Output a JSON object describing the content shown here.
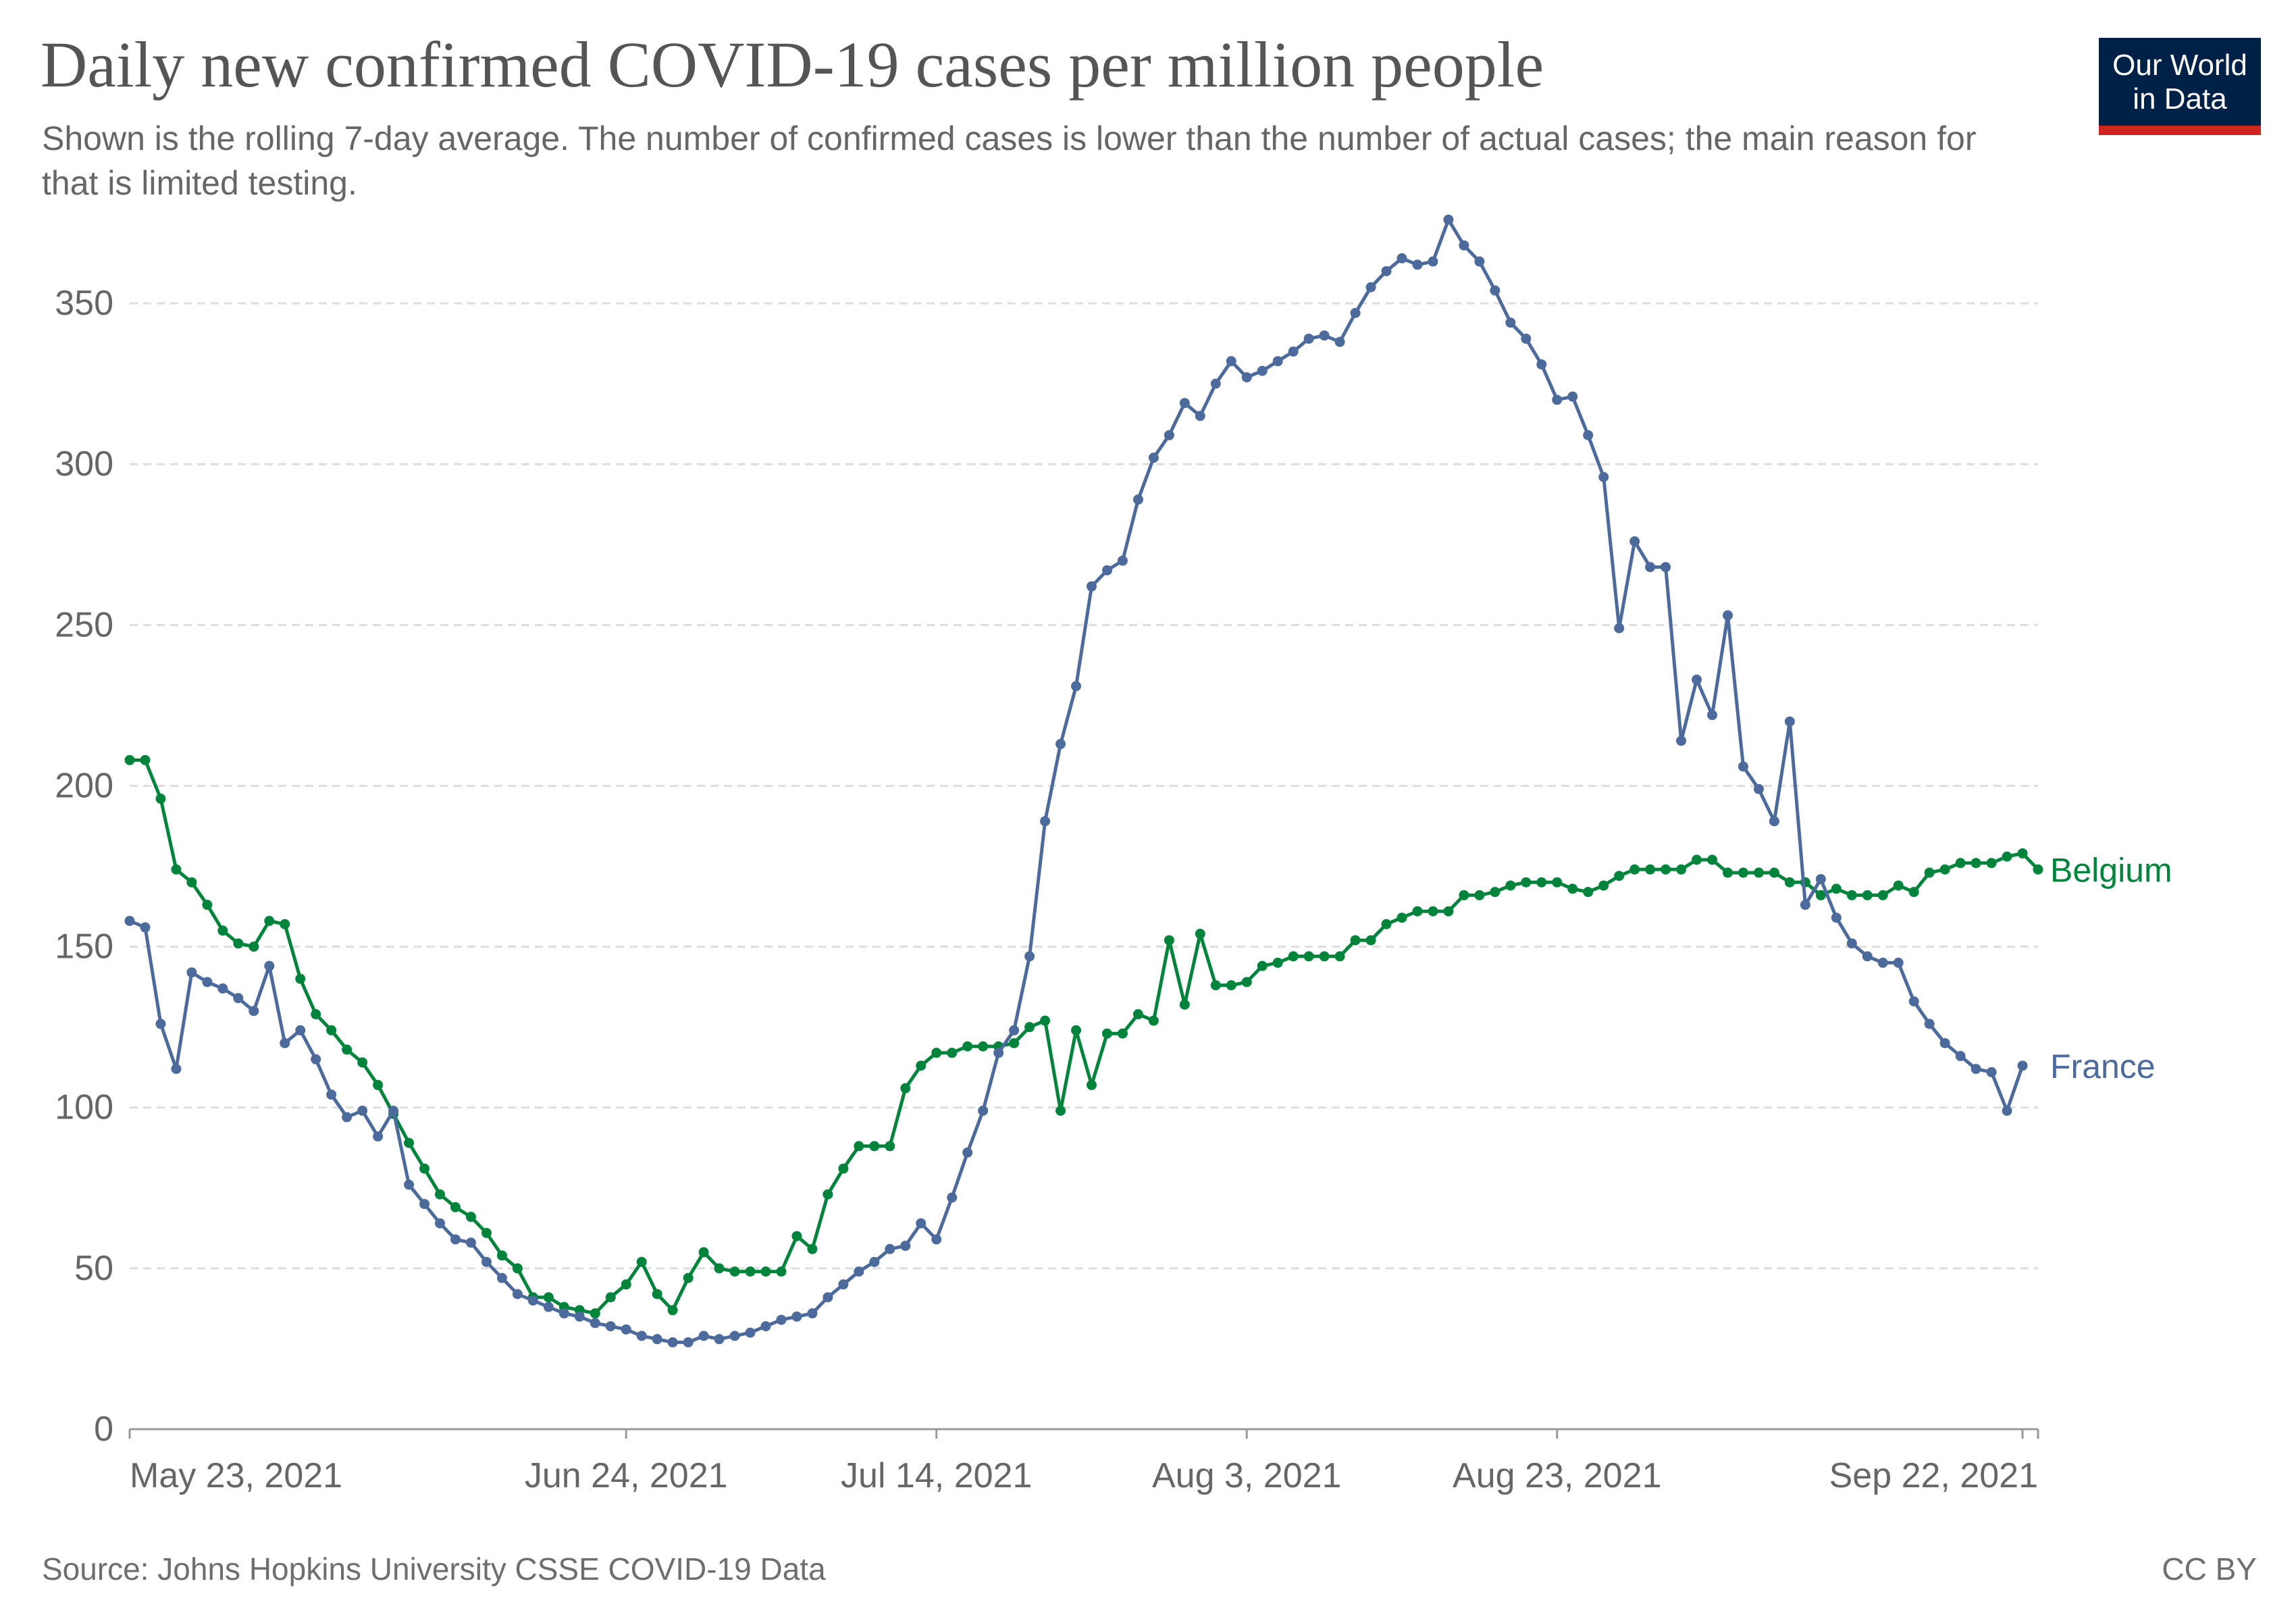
{
  "header": {
    "title": "Daily new confirmed COVID-19 cases per million people",
    "subtitle": "Shown is the rolling 7-day average. The number of confirmed cases is lower than the number of actual cases; the main reason for that is limited testing."
  },
  "logo": {
    "line1": "Our World",
    "line2": "in Data"
  },
  "footer": {
    "source": "Source: Johns Hopkins University CSSE COVID-19 Data",
    "license": "CC BY"
  },
  "chart_data": {
    "type": "line",
    "title": "Daily new confirmed COVID-19 cases per million people",
    "xlabel": "",
    "ylabel": "",
    "ylim": [
      0,
      375
    ],
    "yticks": [
      0,
      50,
      100,
      150,
      200,
      250,
      300,
      350
    ],
    "x_start": "May 23, 2021",
    "x_end": "Sep 24, 2021",
    "xticks": [
      {
        "label": "May 23, 2021",
        "day": 0
      },
      {
        "label": "Jun 24, 2021",
        "day": 32
      },
      {
        "label": "Jul 14, 2021",
        "day": 52
      },
      {
        "label": "Aug 3, 2021",
        "day": 72
      },
      {
        "label": "Aug 23, 2021",
        "day": 92
      },
      {
        "label": "Sep 22, 2021",
        "day": 122
      }
    ],
    "grid": "horizontal dashed",
    "legend": "inline labels at line ends",
    "series": [
      {
        "name": "Belgium",
        "color": "#00843b",
        "values": [
          208,
          208,
          196,
          174,
          170,
          163,
          155,
          151,
          150,
          158,
          157,
          140,
          129,
          124,
          118,
          114,
          107,
          98,
          89,
          81,
          73,
          69,
          66,
          61,
          54,
          50,
          41,
          41,
          38,
          37,
          36,
          41,
          45,
          52,
          42,
          37,
          47,
          55,
          50,
          49,
          49,
          49,
          49,
          60,
          56,
          73,
          81,
          88,
          88,
          88,
          106,
          113,
          117,
          117,
          119,
          119,
          119,
          120,
          125,
          127,
          99,
          124,
          107,
          123,
          123,
          129,
          127,
          152,
          132,
          154,
          138,
          138,
          139,
          144,
          145,
          147,
          147,
          147,
          147,
          152,
          152,
          157,
          159,
          161,
          161,
          161,
          166,
          166,
          167,
          169,
          170,
          170,
          170,
          168,
          167,
          169,
          172,
          174,
          174,
          174,
          174,
          177,
          177,
          173,
          173,
          173,
          173,
          170,
          170,
          166,
          168,
          166,
          166,
          166,
          169,
          167,
          173,
          174,
          176,
          176,
          176,
          178,
          179,
          174
        ]
      },
      {
        "name": "France",
        "color": "#4c6a9c",
        "values": [
          158,
          156,
          126,
          112,
          142,
          139,
          137,
          134,
          130,
          144,
          120,
          124,
          115,
          104,
          97,
          99,
          91,
          99,
          76,
          70,
          64,
          59,
          58,
          52,
          47,
          42,
          40,
          38,
          36,
          35,
          33,
          32,
          31,
          29,
          28,
          27,
          27,
          29,
          28,
          29,
          30,
          32,
          34,
          35,
          36,
          41,
          45,
          49,
          52,
          56,
          57,
          64,
          59,
          72,
          86,
          99,
          117,
          124,
          147,
          189,
          213,
          231,
          262,
          267,
          270,
          289,
          302,
          309,
          319,
          315,
          325,
          332,
          327,
          329,
          332,
          335,
          339,
          340,
          338,
          347,
          355,
          360,
          364,
          362,
          363,
          376,
          368,
          363,
          354,
          344,
          339,
          331,
          320,
          321,
          309,
          296,
          249,
          276,
          268,
          268,
          214,
          233,
          222,
          253,
          206,
          199,
          189,
          220,
          163,
          171,
          159,
          151,
          147,
          145,
          145,
          133,
          126,
          120,
          116,
          112,
          111,
          99,
          113
        ]
      }
    ]
  }
}
